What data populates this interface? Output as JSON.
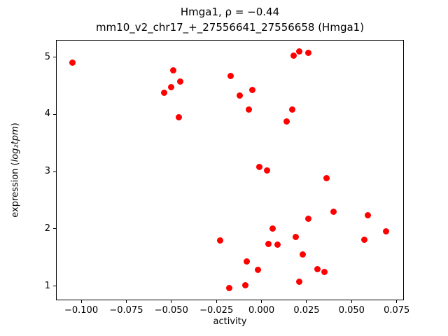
{
  "chart_data": {
    "type": "scatter",
    "title_line1": "Hmga1, ρ = −0.44",
    "title_line2": "mm10_v2_chr17_+_27556641_27556658 (Hmga1)",
    "xlabel": "activity",
    "ylabel_prefix": "expression (",
    "ylabel_math": "log₂tpm",
    "ylabel_suffix": ")",
    "marker_color": "#ff0000",
    "marker_size_px": 9,
    "xlim": [
      -0.114,
      0.079
    ],
    "ylim": [
      0.75,
      5.3
    ],
    "x_ticks": [
      {
        "value": -0.1,
        "label": "−0.100"
      },
      {
        "value": -0.075,
        "label": "−0.075"
      },
      {
        "value": -0.05,
        "label": "−0.050"
      },
      {
        "value": -0.025,
        "label": "−0.025"
      },
      {
        "value": 0.0,
        "label": "0.000"
      },
      {
        "value": 0.025,
        "label": "0.025"
      },
      {
        "value": 0.05,
        "label": "0.050"
      },
      {
        "value": 0.075,
        "label": "0.075"
      }
    ],
    "y_ticks": [
      {
        "value": 1,
        "label": "1"
      },
      {
        "value": 2,
        "label": "2"
      },
      {
        "value": 3,
        "label": "3"
      },
      {
        "value": 4,
        "label": "4"
      },
      {
        "value": 5,
        "label": "5"
      }
    ],
    "points": [
      {
        "x": -0.105,
        "y": 4.9
      },
      {
        "x": -0.054,
        "y": 4.38
      },
      {
        "x": -0.05,
        "y": 4.48
      },
      {
        "x": -0.049,
        "y": 4.77
      },
      {
        "x": -0.045,
        "y": 4.57
      },
      {
        "x": -0.046,
        "y": 3.95
      },
      {
        "x": -0.017,
        "y": 4.67
      },
      {
        "x": -0.012,
        "y": 4.33
      },
      {
        "x": -0.005,
        "y": 4.42
      },
      {
        "x": -0.007,
        "y": 4.08
      },
      {
        "x": 0.017,
        "y": 4.08
      },
      {
        "x": 0.014,
        "y": 3.88
      },
      {
        "x": 0.018,
        "y": 5.03
      },
      {
        "x": 0.021,
        "y": 5.1
      },
      {
        "x": 0.026,
        "y": 5.07
      },
      {
        "x": -0.001,
        "y": 3.08
      },
      {
        "x": 0.003,
        "y": 3.02
      },
      {
        "x": 0.036,
        "y": 2.88
      },
      {
        "x": 0.04,
        "y": 2.3
      },
      {
        "x": 0.059,
        "y": 2.24
      },
      {
        "x": 0.026,
        "y": 2.18
      },
      {
        "x": 0.006,
        "y": 2.0
      },
      {
        "x": 0.069,
        "y": 1.96
      },
      {
        "x": 0.019,
        "y": 1.86
      },
      {
        "x": -0.023,
        "y": 1.79
      },
      {
        "x": 0.057,
        "y": 1.81
      },
      {
        "x": 0.004,
        "y": 1.74
      },
      {
        "x": 0.009,
        "y": 1.72
      },
      {
        "x": 0.023,
        "y": 1.55
      },
      {
        "x": -0.008,
        "y": 1.43
      },
      {
        "x": -0.002,
        "y": 1.28
      },
      {
        "x": 0.031,
        "y": 1.3
      },
      {
        "x": 0.035,
        "y": 1.24
      },
      {
        "x": 0.021,
        "y": 1.07
      },
      {
        "x": -0.009,
        "y": 1.01
      },
      {
        "x": -0.018,
        "y": 0.96
      }
    ]
  }
}
